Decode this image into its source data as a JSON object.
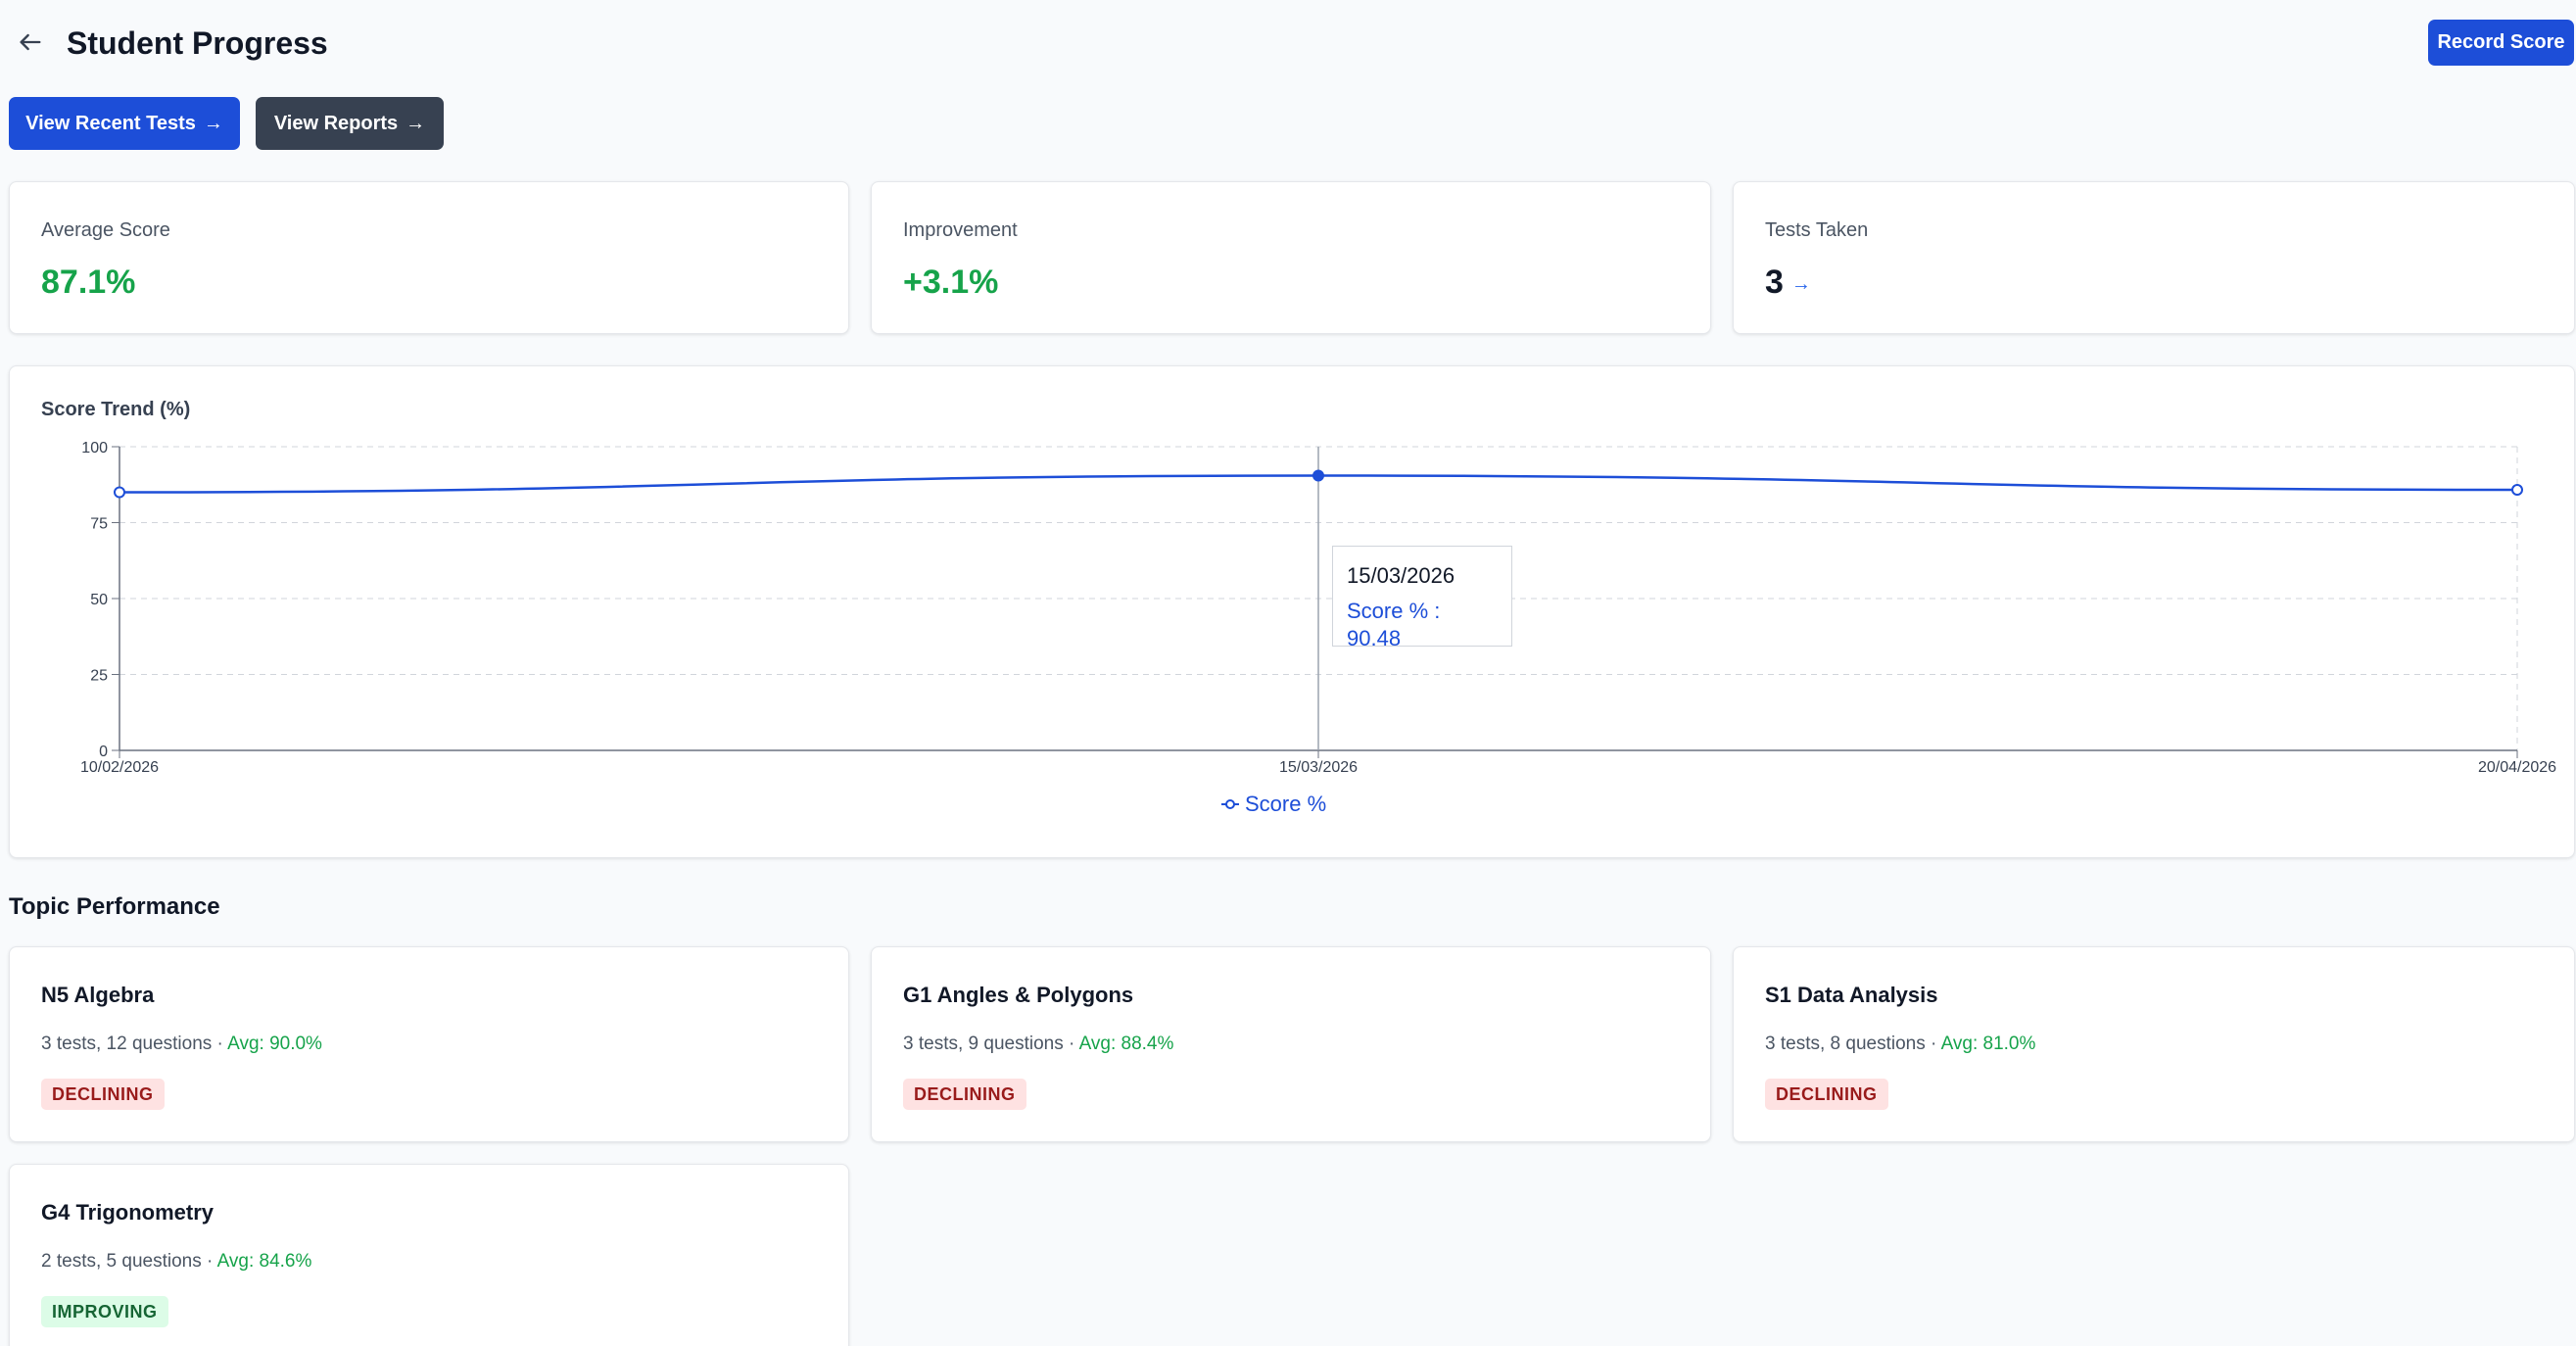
{
  "header": {
    "title": "Student Progress",
    "back_icon": "arrow-left-icon",
    "record_label": "Record Score"
  },
  "actions": {
    "recent_tests_label": "View Recent Tests",
    "reports_label": "View Reports"
  },
  "stats": [
    {
      "label": "Average Score",
      "value": "87.1%"
    },
    {
      "label": "Improvement",
      "value": "+3.1%"
    },
    {
      "label": "Tests Taken",
      "value": "3"
    }
  ],
  "chart": {
    "title": "Score Trend (%)",
    "legend_label": "Score %",
    "tooltip": {
      "date": "15/03/2026",
      "text": "Score % : 90.48"
    }
  },
  "chart_data": {
    "type": "line",
    "title": "Score Trend (%)",
    "x": [
      "10/02/2026",
      "15/03/2026",
      "20/04/2026"
    ],
    "series": [
      {
        "name": "Score %",
        "values": [
          85,
          90.48,
          85.8
        ]
      }
    ],
    "ylim": [
      0,
      100
    ],
    "yticks": [
      0,
      25,
      50,
      75,
      100
    ],
    "grid": true,
    "legend": "bottom-center",
    "color": "#1d4ed8"
  },
  "topics": {
    "title": "Topic Performance",
    "items": [
      {
        "name": "N5 Algebra",
        "meta": "3 tests, 12 questions",
        "avg": "Avg: 90.0%",
        "status": "DECLINING"
      },
      {
        "name": "G1 Angles & Polygons",
        "meta": "3 tests, 9 questions",
        "avg": "Avg: 88.4%",
        "status": "DECLINING"
      },
      {
        "name": "S1 Data Analysis",
        "meta": "3 tests, 8 questions",
        "avg": "Avg: 81.0%",
        "status": "DECLINING"
      },
      {
        "name": "G4 Trigonometry",
        "meta": "2 tests, 5 questions",
        "avg": "Avg: 84.6%",
        "status": "IMPROVING"
      }
    ]
  }
}
